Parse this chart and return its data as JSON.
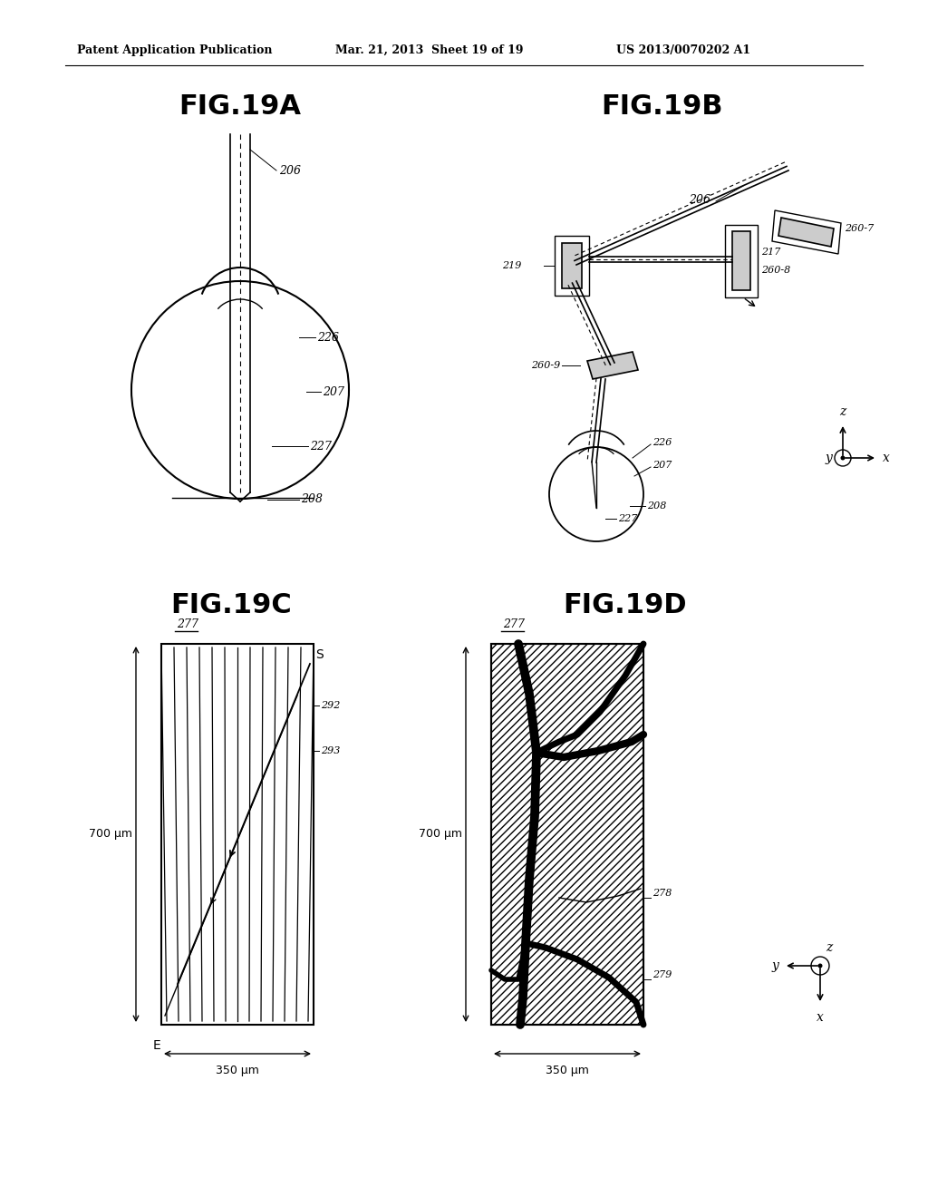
{
  "title_left": "FIG.19A",
  "title_right": "FIG.19B",
  "title_bottom_left": "FIG.19C",
  "title_bottom_right": "FIG.19D",
  "header_left": "Patent Application Publication",
  "header_mid": "Mar. 21, 2013  Sheet 19 of 19",
  "header_right": "US 2013/0070202 A1",
  "bg_color": "#ffffff",
  "line_color": "#000000",
  "label_206_19A": "206",
  "label_226_19A": "226",
  "label_207_19A": "207",
  "label_227_19A": "227",
  "label_208_19A": "208",
  "label_206_19B": "206",
  "label_219_19B": "219",
  "label_2607_19B": "260-7",
  "label_2609_19B": "260-9",
  "label_217_19B": "217",
  "label_2608_19B": "260-8",
  "label_226_19B": "226",
  "label_207_19B": "207",
  "label_208_19B": "208",
  "label_227_19B": "227",
  "label_277_19C": "277",
  "label_292_19C": "292",
  "label_293_19C": "293",
  "label_700um_19C": "700 μm",
  "label_350um_19C": "350 μm",
  "label_277_19D": "277",
  "label_278_19D": "278",
  "label_279_19D": "279",
  "label_700um_19D": "700 μm",
  "label_350um_19D": "350 μm"
}
